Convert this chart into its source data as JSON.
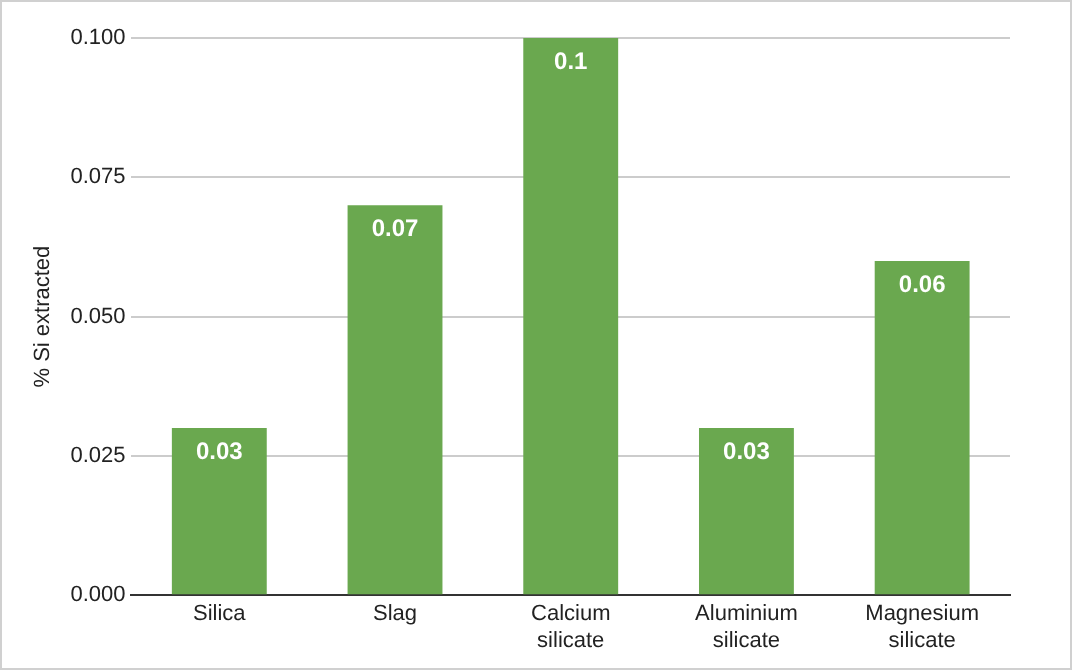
{
  "chart_data": {
    "type": "bar",
    "ylabel": "% Si extracted",
    "categories": [
      "Silica",
      "Slag",
      "Calcium silicate",
      "Aluminium silicate",
      "Magnesium silicate"
    ],
    "values": [
      0.03,
      0.07,
      0.1,
      0.03,
      0.06
    ],
    "color": "#6aa84f",
    "ylim": [
      0,
      0.1
    ],
    "yticks": [
      {
        "value": 0,
        "label": "0.000"
      },
      {
        "value": 0.025,
        "label": "0.025"
      },
      {
        "value": 0.05,
        "label": "0.050"
      },
      {
        "value": 0.075,
        "label": "0.075"
      },
      {
        "value": 0.1,
        "label": "0.100"
      }
    ],
    "grid": "y",
    "data_labels": true
  }
}
